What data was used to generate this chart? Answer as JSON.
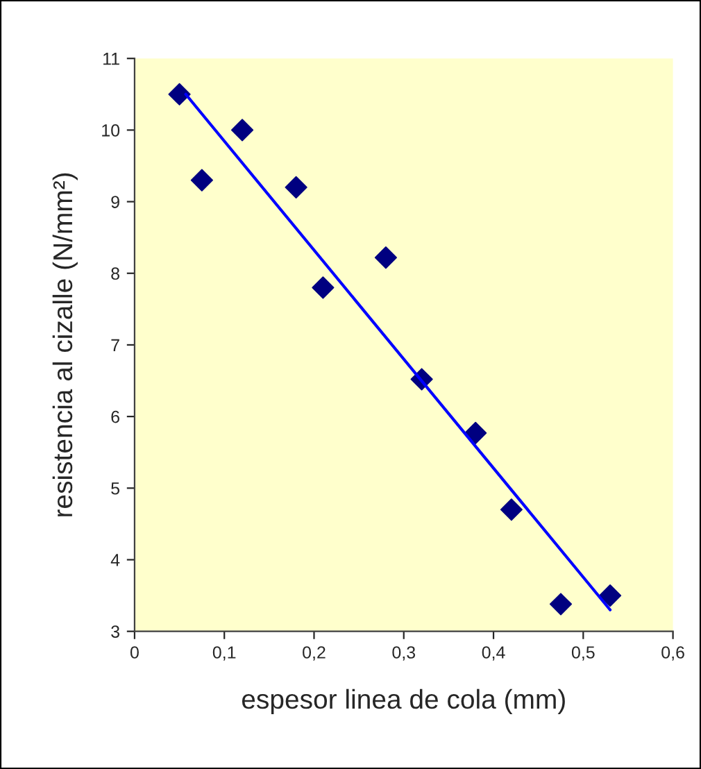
{
  "chart_data": {
    "type": "scatter",
    "xlabel": "espesor linea de cola (mm)",
    "ylabel": "resistencia al cizalle (N/mm²)",
    "x": [
      0.05,
      0.075,
      0.12,
      0.18,
      0.21,
      0.28,
      0.32,
      0.38,
      0.42,
      0.475,
      0.53
    ],
    "series": [
      {
        "color": "#000080",
        "marker": "diamond",
        "values": [
          10.5,
          9.3,
          10.0,
          9.2,
          7.8,
          8.22,
          6.52,
          5.77,
          4.7,
          3.38,
          3.5
        ]
      },
      {
        "type": "line",
        "color": "#0000ff",
        "marker": "none",
        "x": [
          0.057,
          0.53
        ],
        "values": [
          10.5,
          3.3
        ]
      }
    ],
    "xlim": [
      0,
      0.6
    ],
    "ylim": [
      3,
      11
    ],
    "xticks": [
      0,
      {
        "value": 0.1,
        "label": "0,1"
      },
      {
        "value": 0.2,
        "label": "0,2"
      },
      {
        "value": 0.3,
        "label": "0,3"
      },
      {
        "value": 0.4,
        "label": "0,4"
      },
      {
        "value": 0.5,
        "label": "0,5"
      },
      {
        "value": 0.6,
        "label": "0,6"
      }
    ],
    "yticks": [
      3,
      4,
      5,
      6,
      7,
      8,
      9,
      10,
      11
    ],
    "grid": false,
    "legend": false
  }
}
